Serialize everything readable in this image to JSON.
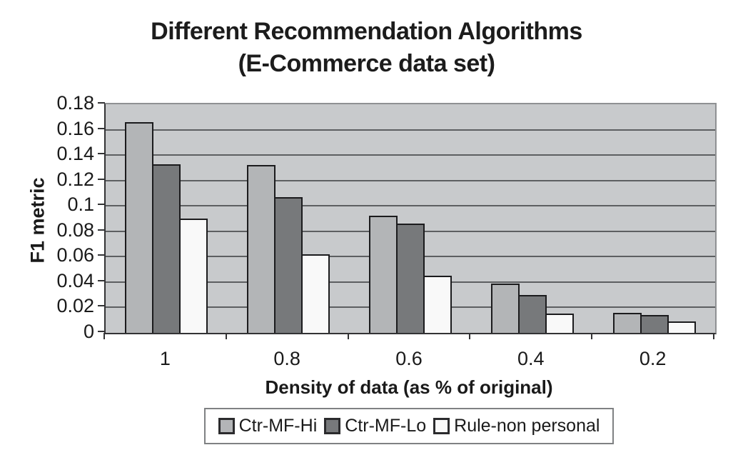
{
  "title": {
    "line1": "Different Recommendation Algorithms",
    "line2": "(E-Commerce data set)"
  },
  "chart_data": {
    "type": "bar",
    "title": "Different Recommendation Algorithms (E-Commerce data set)",
    "xlabel": "Density of data (as % of original)",
    "ylabel": "F1 metric",
    "categories": [
      "1",
      "0.8",
      "0.6",
      "0.4",
      "0.2"
    ],
    "series": [
      {
        "name": "Ctr-MF-Hi",
        "color": "#b3b5b7",
        "values": [
          0.166,
          0.132,
          0.092,
          0.039,
          0.016
        ]
      },
      {
        "name": "Ctr-MF-Lo",
        "color": "#77797b",
        "values": [
          0.133,
          0.107,
          0.086,
          0.03,
          0.014
        ]
      },
      {
        "name": "Rule-non personal",
        "color": "#f9f9f9",
        "values": [
          0.09,
          0.062,
          0.045,
          0.015,
          0.009
        ]
      }
    ],
    "ylim": [
      0,
      0.18
    ],
    "ytick_step": 0.02,
    "ytick_labels": [
      "0",
      "0.02",
      "0.04",
      "0.06",
      "0.08",
      "0.1",
      "0.12",
      "0.14",
      "0.16",
      "0.18"
    ],
    "grid": true,
    "legend_position": "bottom",
    "colors": {
      "plot_background": "#c8cacc",
      "gridline": "#5d5f61",
      "axis_line": "#333335",
      "bar_border": "#1b1b1d",
      "text": "#1a1a1a"
    }
  }
}
